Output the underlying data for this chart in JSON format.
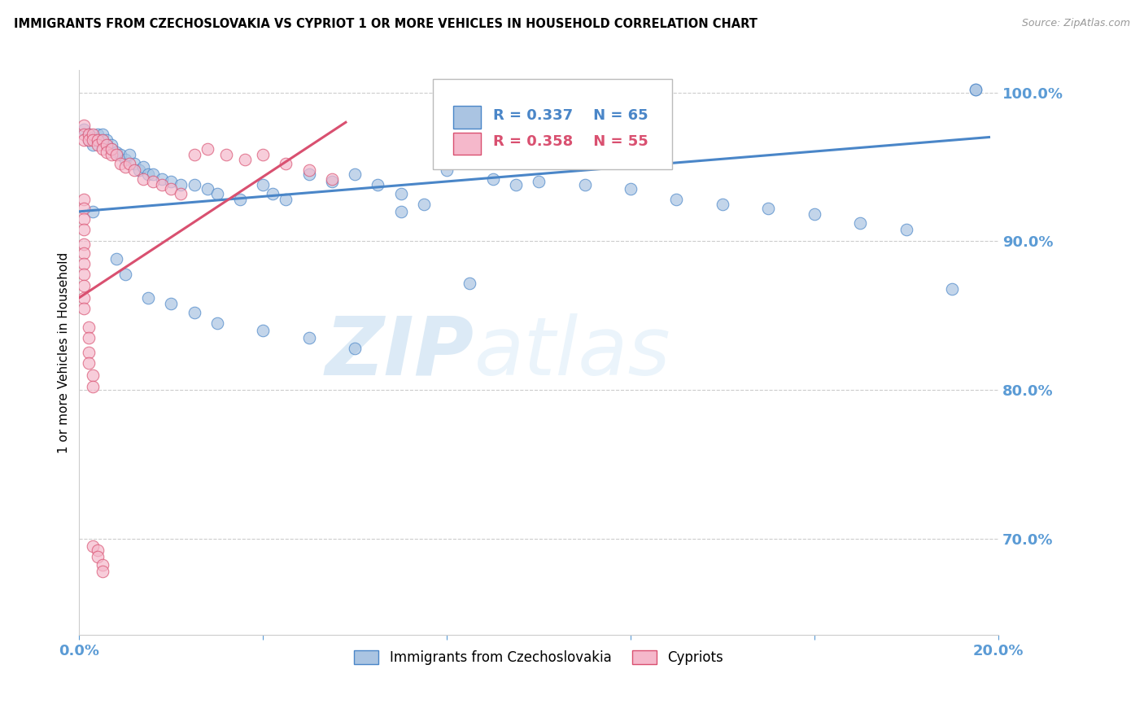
{
  "title": "IMMIGRANTS FROM CZECHOSLOVAKIA VS CYPRIOT 1 OR MORE VEHICLES IN HOUSEHOLD CORRELATION CHART",
  "source": "Source: ZipAtlas.com",
  "ylabel": "1 or more Vehicles in Household",
  "legend_blue_label": "Immigrants from Czechoslovakia",
  "legend_pink_label": "Cypriots",
  "R_blue": 0.337,
  "N_blue": 65,
  "R_pink": 0.358,
  "N_pink": 55,
  "xlim": [
    0.0,
    0.2
  ],
  "ylim": [
    0.635,
    1.015
  ],
  "yticks": [
    0.7,
    0.8,
    0.9,
    1.0
  ],
  "ytick_labels": [
    "70.0%",
    "80.0%",
    "90.0%",
    "100.0%"
  ],
  "xticks": [
    0.0,
    0.04,
    0.08,
    0.12,
    0.16,
    0.2
  ],
  "xtick_labels": [
    "0.0%",
    "",
    "",
    "",
    "",
    "20.0%"
  ],
  "color_blue": "#aac4e2",
  "color_pink": "#f5b8cb",
  "trendline_blue": "#4a86c8",
  "trendline_pink": "#d95070",
  "axis_color": "#5b9bd5",
  "grid_color": "#cccccc",
  "watermark_zip": "ZIP",
  "watermark_atlas": "atlas",
  "blue_x": [
    0.001,
    0.002,
    0.002,
    0.003,
    0.003,
    0.004,
    0.004,
    0.005,
    0.005,
    0.006,
    0.006,
    0.007,
    0.007,
    0.008,
    0.009,
    0.01,
    0.011,
    0.012,
    0.013,
    0.014,
    0.015,
    0.016,
    0.018,
    0.02,
    0.022,
    0.025,
    0.028,
    0.03,
    0.035,
    0.04,
    0.042,
    0.045,
    0.05,
    0.055,
    0.06,
    0.065,
    0.07,
    0.075,
    0.08,
    0.09,
    0.095,
    0.1,
    0.11,
    0.12,
    0.13,
    0.14,
    0.15,
    0.16,
    0.17,
    0.18,
    0.19,
    0.195,
    0.003,
    0.008,
    0.01,
    0.015,
    0.02,
    0.025,
    0.03,
    0.04,
    0.05,
    0.06,
    0.07,
    0.085,
    0.195
  ],
  "blue_y": [
    0.975,
    0.972,
    0.968,
    0.97,
    0.965,
    0.972,
    0.968,
    0.968,
    0.972,
    0.965,
    0.968,
    0.962,
    0.965,
    0.96,
    0.958,
    0.955,
    0.958,
    0.952,
    0.948,
    0.95,
    0.945,
    0.945,
    0.942,
    0.94,
    0.938,
    0.938,
    0.935,
    0.932,
    0.928,
    0.938,
    0.932,
    0.928,
    0.945,
    0.94,
    0.945,
    0.938,
    0.932,
    0.925,
    0.948,
    0.942,
    0.938,
    0.94,
    0.938,
    0.935,
    0.928,
    0.925,
    0.922,
    0.918,
    0.912,
    0.908,
    0.868,
    1.002,
    0.92,
    0.888,
    0.878,
    0.862,
    0.858,
    0.852,
    0.845,
    0.84,
    0.835,
    0.828,
    0.92,
    0.872,
    1.002
  ],
  "pink_x": [
    0.001,
    0.001,
    0.001,
    0.002,
    0.002,
    0.003,
    0.003,
    0.004,
    0.004,
    0.005,
    0.005,
    0.006,
    0.006,
    0.007,
    0.007,
    0.008,
    0.009,
    0.01,
    0.011,
    0.012,
    0.014,
    0.016,
    0.018,
    0.02,
    0.022,
    0.025,
    0.028,
    0.032,
    0.036,
    0.04,
    0.045,
    0.05,
    0.055,
    0.001,
    0.001,
    0.001,
    0.001,
    0.001,
    0.001,
    0.001,
    0.001,
    0.001,
    0.001,
    0.001,
    0.002,
    0.002,
    0.002,
    0.002,
    0.003,
    0.003,
    0.003,
    0.004,
    0.004,
    0.005,
    0.005
  ],
  "pink_y": [
    0.978,
    0.972,
    0.968,
    0.972,
    0.968,
    0.972,
    0.968,
    0.968,
    0.965,
    0.968,
    0.962,
    0.965,
    0.96,
    0.958,
    0.962,
    0.958,
    0.952,
    0.95,
    0.952,
    0.948,
    0.942,
    0.94,
    0.938,
    0.935,
    0.932,
    0.958,
    0.962,
    0.958,
    0.955,
    0.958,
    0.952,
    0.948,
    0.942,
    0.928,
    0.922,
    0.915,
    0.908,
    0.898,
    0.892,
    0.885,
    0.878,
    0.87,
    0.862,
    0.855,
    0.842,
    0.835,
    0.825,
    0.818,
    0.81,
    0.802,
    0.695,
    0.692,
    0.688,
    0.682,
    0.678
  ],
  "trend_blue_x0": 0.0,
  "trend_blue_x1": 0.198,
  "trend_blue_y0": 0.92,
  "trend_blue_y1": 0.97,
  "trend_pink_x0": 0.0,
  "trend_pink_x1": 0.058,
  "trend_pink_y0": 0.862,
  "trend_pink_y1": 0.98
}
